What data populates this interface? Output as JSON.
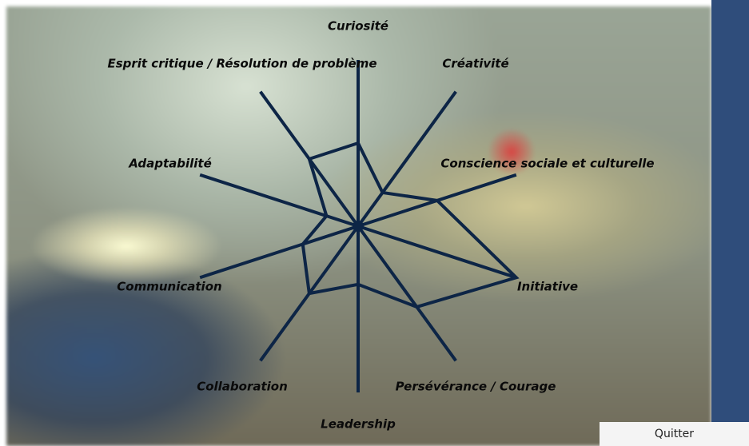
{
  "chart_data": {
    "type": "radar",
    "categories": [
      "Curiosité",
      "Créativité",
      "Conscience sociale et culturelle",
      "Initiative",
      "Persévérance / Courage",
      "Leadership",
      "Collaboration",
      "Communication",
      "Adaptabilité",
      "Esprit critique / Résolution de problème"
    ],
    "values": [
      5,
      2.5,
      5,
      10,
      6,
      3.5,
      5,
      3.5,
      2,
      5
    ],
    "rlim": [
      0,
      10
    ],
    "color": "#0d2546"
  },
  "button": {
    "label": "Quitter"
  }
}
